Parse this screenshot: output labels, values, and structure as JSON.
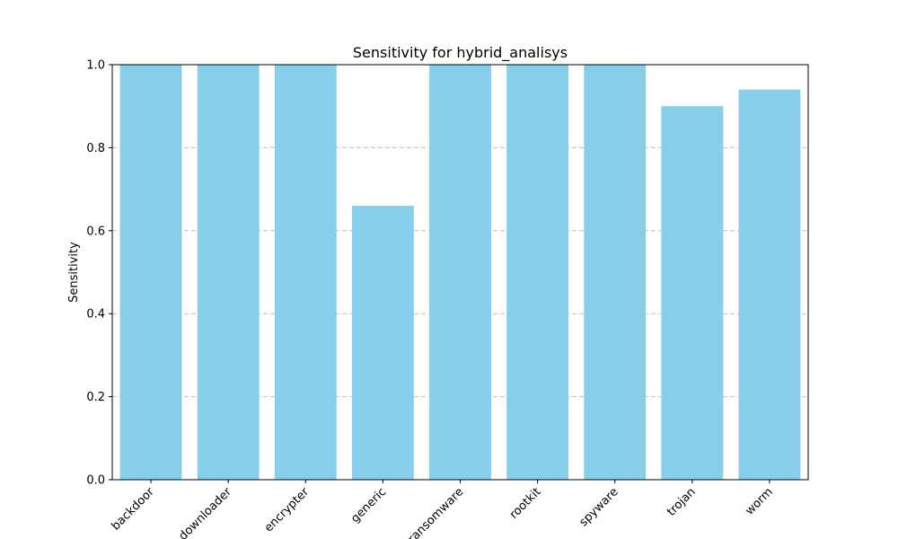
{
  "chart_data": {
    "type": "bar",
    "title": "Sensitivity for hybrid_analisys",
    "xlabel": "",
    "ylabel": "Sensitivity",
    "categories": [
      "backdoor",
      "downloader",
      "encrypter",
      "generic",
      "ransomware",
      "rootkit",
      "spyware",
      "trojan",
      "worm"
    ],
    "values": [
      1.0,
      1.0,
      1.0,
      0.66,
      1.0,
      1.0,
      1.0,
      0.9,
      0.94
    ],
    "ylim": [
      0,
      1.0
    ],
    "yticks": [
      "0.0",
      "0.2",
      "0.4",
      "0.6",
      "0.8",
      "1.0"
    ],
    "grid": "y-dashed",
    "bar_color": "#87CEEB",
    "grid_color": "#c0c0c0"
  }
}
